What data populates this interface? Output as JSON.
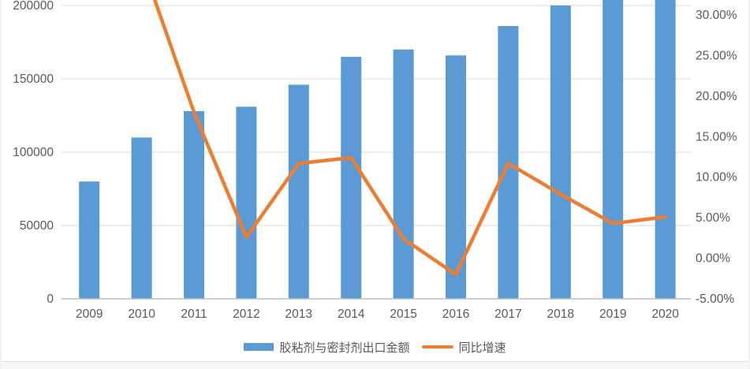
{
  "chart_data": {
    "type": "bar",
    "subtype": "combo-bar-line-dual-axis",
    "title": "",
    "categories": [
      "2009",
      "2010",
      "2011",
      "2012",
      "2013",
      "2014",
      "2015",
      "2016",
      "2017",
      "2018",
      "2019",
      "2020"
    ],
    "series": [
      {
        "name": "胶粘剂与密封剂出口金额",
        "type": "bar",
        "axis": "left",
        "color": "#5B9BD5",
        "values": [
          80000,
          110000,
          128000,
          131000,
          146000,
          165000,
          170000,
          166000,
          186000,
          200000,
          210000,
          216000
        ],
        "note": "2019 and 2020 bars extend above the cropped top edge of the screenshot; their values are estimates (> 204000)"
      },
      {
        "name": "同比增速",
        "type": "line",
        "axis": "right",
        "color": "#ED7D31",
        "values": [
          null,
          36.5,
          18.0,
          2.6,
          11.7,
          12.4,
          2.4,
          -2.0,
          11.7,
          7.9,
          4.3,
          5.1
        ],
        "note": "Values in percent. No 2009 point; the 2010 vertex lies above the cropped top edge (estimate ~36.5%)"
      }
    ],
    "left_axis": {
      "tick_labels": [
        "0",
        "50000",
        "100000",
        "150000",
        "200000"
      ],
      "tick_values": [
        0,
        50000,
        100000,
        150000,
        200000
      ],
      "min": 0,
      "visible_max": 204000
    },
    "right_axis": {
      "tick_labels": [
        "-5.00%",
        "0.00%",
        "5.00%",
        "10.00%",
        "15.00%",
        "20.00%",
        "25.00%",
        "30.00%"
      ],
      "tick_values": [
        -5,
        0,
        5,
        10,
        15,
        20,
        25,
        30
      ],
      "min": -5,
      "visible_max": 31.9
    },
    "grid": true,
    "legend_position": "bottom",
    "colors": {
      "bar": "#5B9BD5",
      "line": "#ED7D31",
      "gridline": "#D9D9D9",
      "axis_line": "#BFBFBF",
      "tick_text": "#595959"
    }
  },
  "legend": {
    "bar_label": "胶粘剂与密封剂出口金额",
    "line_label": "同比增速"
  }
}
